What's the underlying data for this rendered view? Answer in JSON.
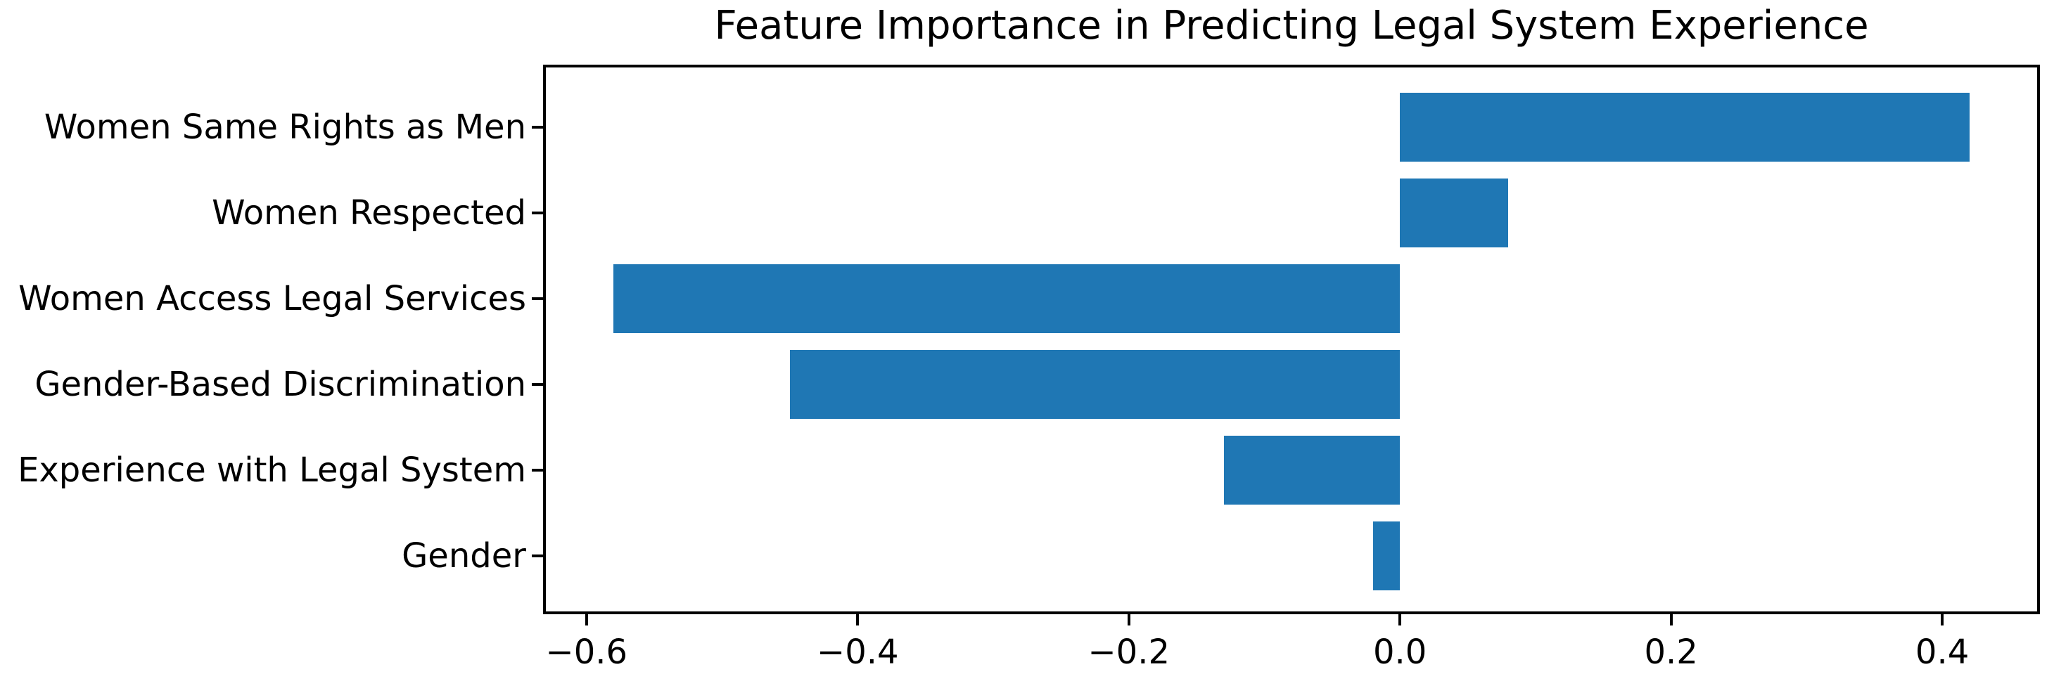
{
  "title": "Feature Importance in Predicting Legal System Experience",
  "chart_data": {
    "type": "bar",
    "orientation": "horizontal",
    "title": "Feature Importance in Predicting Legal System Experience",
    "xlabel": "",
    "ylabel": "",
    "categories": [
      "Women Same Rights as Men",
      "Women Respected",
      "Women Access Legal Services",
      "Gender-Based Discrimination",
      "Experience with Legal System",
      "Gender"
    ],
    "values": [
      0.42,
      0.08,
      -0.58,
      -0.45,
      -0.13,
      -0.02
    ],
    "xlim": [
      -0.63,
      0.47
    ],
    "x_ticks": [
      -0.6,
      -0.4,
      -0.2,
      0.0,
      0.2,
      0.4
    ],
    "x_tick_labels": [
      "−0.6",
      "−0.4",
      "−0.2",
      "0.0",
      "0.2",
      "0.4"
    ],
    "grid": false,
    "legend": null,
    "bar_color": "#1f77b4",
    "axis_color": "#000000",
    "background_color": "#ffffff"
  }
}
